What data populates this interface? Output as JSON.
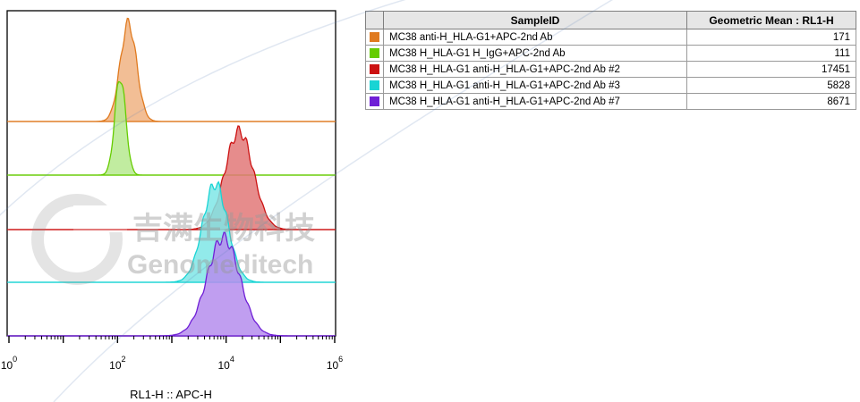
{
  "chart_data": {
    "type": "histogram-overlay",
    "x_axis": {
      "label": "RL1-H :: APC-H",
      "scale": "log",
      "range": [
        1,
        1000000
      ],
      "tick_labels": [
        {
          "base": "10",
          "exp": "0"
        },
        {
          "base": "10",
          "exp": "2"
        },
        {
          "base": "10",
          "exp": "4"
        },
        {
          "base": "10",
          "exp": "6"
        }
      ]
    },
    "series": [
      {
        "name": "MC38 anti-H_HLA-G1+APC-2nd Ab",
        "color": "#e07a1f",
        "fill": "#f0b383",
        "geometric_mean": 171,
        "peak_log10": 2.2,
        "sd_log10": 0.15
      },
      {
        "name": "MC38 H_HLA-G1 H_IgG+APC-2nd Ab",
        "color": "#66cc00",
        "fill": "#b6e98f",
        "geometric_mean": 111,
        "peak_log10": 2.05,
        "sd_log10": 0.1
      },
      {
        "name": "MC38 H_HLA-G1 anti-H_HLA-G1+APC-2nd Ab #2",
        "color": "#cc1111",
        "fill": "#e27878",
        "geometric_mean": 17451,
        "peak_log10": 4.24,
        "sd_log10": 0.26
      },
      {
        "name": "MC38 H_HLA-G1 anti-H_HLA-G1+APC-2nd Ab #3",
        "color": "#19d4d4",
        "fill": "#7fe6e6",
        "geometric_mean": 5828,
        "peak_log10": 3.8,
        "sd_log10": 0.23
      },
      {
        "name": "MC38 H_HLA-G1 anti-H_HLA-G1+APC-2nd Ab #7",
        "color": "#6f1fd6",
        "fill": "#b58ded",
        "geometric_mean": 8671,
        "peak_log10": 3.95,
        "sd_log10": 0.3
      }
    ]
  },
  "table": {
    "header_sample": "SampleID",
    "header_stat": "Geometric Mean : RL1-H"
  },
  "watermark": {
    "text_cn": "吉满生物科技",
    "text_en": "Genomeditech"
  }
}
